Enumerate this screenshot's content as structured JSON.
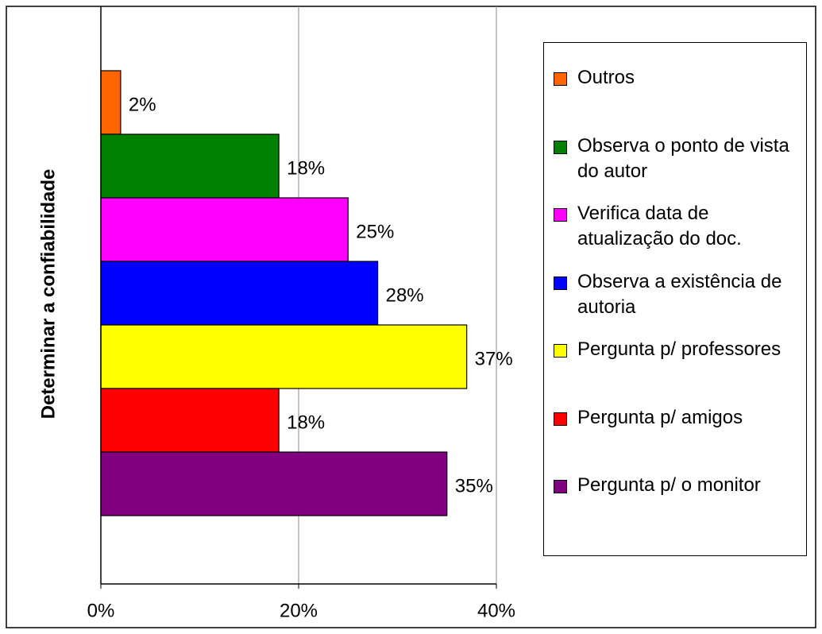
{
  "chart_data": {
    "type": "bar",
    "orientation": "horizontal",
    "y_label": "Determinar a confiabilidade",
    "series": [
      {
        "name": "Outros",
        "color": "#ff6600",
        "values": [
          2
        ],
        "value_labels": [
          "2%"
        ]
      },
      {
        "name": "Observa o ponto de vista do autor",
        "color": "#008000",
        "values": [
          18
        ],
        "value_labels": [
          "18%"
        ]
      },
      {
        "name": "Verifica data de atualização do doc.",
        "color": "#ff00ff",
        "values": [
          25
        ],
        "value_labels": [
          "25%"
        ]
      },
      {
        "name": "Observa a existência de autoria",
        "color": "#0000ff",
        "values": [
          28
        ],
        "value_labels": [
          "28%"
        ]
      },
      {
        "name": "Pergunta p/ professores",
        "color": "#ffff00",
        "values": [
          37
        ],
        "value_labels": [
          "37%"
        ]
      },
      {
        "name": "Pergunta p/ amigos",
        "color": "#ff0000",
        "values": [
          18
        ],
        "value_labels": [
          "18%"
        ]
      },
      {
        "name": "Pergunta p/ o monitor",
        "color": "#800080",
        "values": [
          35
        ],
        "value_labels": [
          "35%"
        ]
      }
    ],
    "xlim": [
      0,
      40
    ],
    "xticks": [
      {
        "value": 0,
        "label": "0%"
      },
      {
        "value": 20,
        "label": "20%"
      },
      {
        "value": 40,
        "label": "40%"
      }
    ],
    "grid": true
  }
}
